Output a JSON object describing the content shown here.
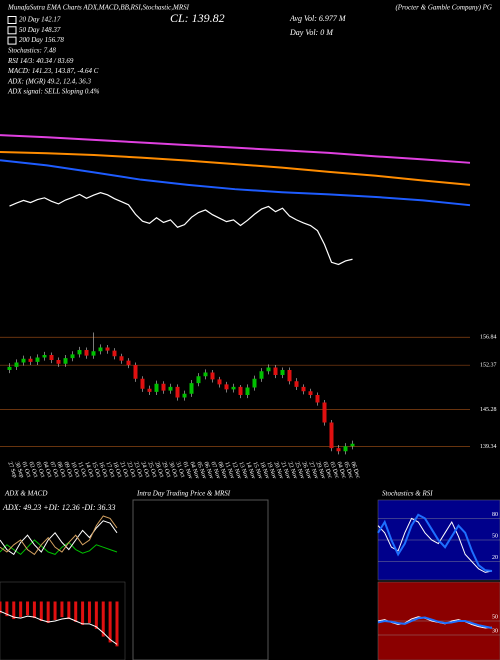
{
  "header": {
    "site": "MunafaSutra EMA Charts ADX,MACD,BB,RSI,Stochastic,MRSI",
    "title": "(Procter & Gamble Company) PG",
    "close": "CL: 139.82",
    "avg_vol": "Avg Vol: 6.977 M",
    "day_vol": "Day Vol: 0   M",
    "stats": [
      "20 Day  142.17",
      "50 Day  148.37",
      "200 Day  156.78",
      "Stochastics: 7.48",
      "RSI 14/3: 40.34 / 83.69",
      "MACD: 141.23, 143.87, -4.64 C",
      "ADX:   (MGR) 49.2, 12.4, 36.3",
      "ADX signal: SELL Sloping 0.4%"
    ]
  },
  "chart_data": [
    {
      "type": "line",
      "ylim": [
        135,
        172
      ],
      "price_color": "#ffffff",
      "series": [
        {
          "color": "#e040e0",
          "values": [
            168.5,
            168.0,
            167.4,
            166.8,
            166.2,
            165.6,
            165.0,
            164.4,
            163.6,
            162.9,
            162.1
          ]
        },
        {
          "color": "#ff8c00",
          "values": [
            164.6,
            164.3,
            163.9,
            163.3,
            162.6,
            161.8,
            161.0,
            160.0,
            159.1,
            158.0,
            157.0
          ]
        },
        {
          "color": "#1e5cff",
          "values": [
            162.7,
            161.5,
            159.9,
            158.2,
            157.0,
            156.0,
            155.3,
            154.8,
            154.2,
            153.4,
            152.3
          ]
        }
      ]
    },
    {
      "type": "candlestick",
      "ylim": [
        138,
        158
      ],
      "yticks": [
        156.84,
        152.37,
        145.28,
        139.34
      ],
      "up_color": "#00c000",
      "down_color": "#e01010",
      "grid_color": "#8b4513",
      "categories": [
        "27 Sep",
        "30 Sep",
        "01 Oct",
        "02 Oct",
        "03 Oct",
        "04 Oct",
        "07 Oct",
        "08 Oct",
        "09 Oct",
        "10 Oct",
        "11 Oct",
        "14 Oct",
        "15 Oct",
        "16 Oct",
        "17 Oct",
        "18 Oct",
        "21 Oct",
        "22 Oct",
        "23 Oct",
        "24 Oct",
        "25 Oct",
        "28 Oct",
        "29 Oct",
        "30 Oct",
        "31 Oct",
        "01 Nov",
        "04 Nov",
        "05 Nov",
        "06 Nov",
        "07 Nov",
        "08 Nov",
        "11 Nov",
        "12 Nov",
        "13 Nov",
        "14 Nov",
        "15 Nov",
        "18 Nov",
        "19 Nov",
        "20 Nov",
        "21 Nov",
        "22 Nov",
        "25 Nov",
        "26 Nov",
        "27 Nov",
        "29 Nov",
        "02 Dec",
        "03 Dec",
        "04 Dec",
        "05 Dec",
        "06 Dec"
      ],
      "open": [
        151.6,
        152.1,
        152.8,
        153.4,
        152.9,
        153.6,
        154.0,
        153.2,
        152.6,
        153.5,
        154.1,
        154.8,
        153.9,
        154.6,
        155.2,
        154.7,
        153.8,
        153.1,
        152.4,
        150.2,
        148.6,
        148.1,
        149.4,
        148.3,
        148.9,
        147.2,
        147.8,
        149.5,
        150.6,
        151.2,
        150.1,
        149.3,
        148.5,
        148.9,
        147.6,
        148.8,
        150.2,
        151.4,
        152.0,
        150.8,
        151.6,
        149.8,
        148.9,
        148.2,
        147.6,
        146.4,
        143.2,
        139.1,
        138.6,
        139.4
      ],
      "high": [
        152.7,
        153.3,
        153.9,
        153.8,
        154.1,
        154.5,
        154.4,
        153.6,
        154.0,
        154.6,
        155.3,
        155.2,
        157.6,
        155.7,
        155.6,
        155.1,
        154.2,
        153.5,
        152.8,
        150.6,
        149.1,
        149.9,
        149.8,
        149.4,
        149.3,
        148.3,
        150.0,
        151.1,
        151.7,
        151.6,
        150.5,
        149.7,
        149.4,
        149.2,
        149.3,
        150.7,
        151.9,
        152.5,
        152.4,
        152.0,
        152.0,
        150.3,
        149.3,
        148.6,
        148.0,
        146.8,
        143.6,
        139.6,
        139.9,
        140.3
      ],
      "low": [
        151.1,
        151.6,
        152.3,
        152.4,
        152.4,
        153.1,
        152.7,
        152.1,
        152.1,
        153.0,
        153.6,
        153.4,
        153.4,
        154.1,
        154.2,
        153.3,
        152.6,
        151.9,
        149.7,
        148.1,
        147.6,
        147.6,
        147.8,
        147.8,
        146.7,
        146.7,
        147.3,
        149.0,
        150.1,
        149.6,
        148.8,
        148.0,
        148.0,
        147.1,
        147.1,
        148.3,
        149.7,
        150.9,
        150.3,
        150.3,
        149.3,
        148.4,
        147.7,
        147.1,
        145.9,
        142.7,
        138.6,
        138.1,
        138.1,
        138.9
      ],
      "close": [
        152.1,
        152.8,
        153.4,
        152.9,
        153.6,
        154.0,
        153.2,
        152.6,
        153.5,
        154.1,
        154.8,
        153.9,
        154.6,
        155.2,
        154.7,
        153.8,
        153.1,
        152.4,
        150.2,
        148.6,
        148.1,
        149.4,
        148.3,
        148.9,
        147.2,
        147.8,
        149.5,
        150.6,
        151.2,
        150.1,
        149.3,
        148.5,
        148.9,
        147.6,
        148.8,
        150.2,
        151.4,
        152.0,
        150.8,
        151.6,
        149.8,
        148.9,
        148.2,
        147.6,
        146.4,
        143.2,
        139.1,
        138.6,
        139.4,
        139.8
      ]
    },
    {
      "type": "line",
      "title": "ADX & MACD",
      "annotation": "ADX: 49.23 +DI: 12.36 -DI: 36.33",
      "ylim": [
        0,
        60
      ],
      "series": [
        {
          "color": "#00c000",
          "values": [
            20,
            26,
            22,
            18,
            24,
            30,
            25,
            20,
            18,
            24,
            28,
            22,
            19,
            21,
            26,
            24,
            22,
            20
          ]
        },
        {
          "color": "#ffffff",
          "values": [
            30,
            22,
            18,
            28,
            34,
            26,
            20,
            30,
            36,
            28,
            22,
            30,
            38,
            32,
            40,
            46,
            44,
            36
          ]
        },
        {
          "color": "#d2a060",
          "values": [
            24,
            20,
            26,
            30,
            22,
            18,
            26,
            32,
            24,
            20,
            28,
            34,
            26,
            30,
            42,
            50,
            48,
            40
          ]
        }
      ]
    },
    {
      "type": "bar",
      "ylim": [
        -6,
        2
      ],
      "color": "#e01010",
      "line_color": "#ffffff",
      "values": [
        -1.2,
        -1.5,
        -1.8,
        -1.6,
        -1.4,
        -1.7,
        -2.0,
        -2.2,
        -1.9,
        -1.6,
        -1.8,
        -2.1,
        -2.4,
        -2.2,
        -2.8,
        -3.6,
        -4.2,
        -4.6
      ],
      "line": [
        -1.0,
        -1.3,
        -1.6,
        -1.7,
        -1.5,
        -1.6,
        -1.9,
        -2.1,
        -2.0,
        -1.8,
        -1.7,
        -2.0,
        -2.3,
        -2.3,
        -2.6,
        -3.2,
        -3.9,
        -4.4
      ]
    },
    {
      "type": "line",
      "title": "Intra Day Trading Price & MRSI",
      "series": []
    },
    {
      "type": "line",
      "title": "Stochastics & RSI",
      "ylim": [
        0,
        100
      ],
      "yticks": [
        80,
        50,
        20
      ],
      "background": "#00008b",
      "series": [
        {
          "color": "#ffffff",
          "values": [
            70,
            60,
            40,
            35,
            60,
            80,
            75,
            60,
            50,
            45,
            60,
            75,
            55,
            30,
            20,
            10,
            5,
            7
          ]
        },
        {
          "color": "#1e6fff",
          "values": [
            60,
            75,
            50,
            30,
            45,
            70,
            85,
            80,
            65,
            50,
            40,
            55,
            70,
            60,
            35,
            15,
            8,
            7
          ]
        }
      ]
    },
    {
      "type": "line",
      "ylim": [
        0,
        100
      ],
      "yticks": [
        50,
        30
      ],
      "background": "#8b0000",
      "series": [
        {
          "color": "#ffffff",
          "values": [
            50,
            52,
            48,
            45,
            47,
            53,
            56,
            54,
            50,
            48,
            46,
            50,
            52,
            49,
            45,
            42,
            40,
            41
          ]
        },
        {
          "color": "#1e6fff",
          "values": [
            48,
            50,
            49,
            47,
            46,
            50,
            54,
            55,
            52,
            49,
            47,
            48,
            50,
            50,
            47,
            44,
            42,
            40
          ]
        }
      ]
    }
  ]
}
